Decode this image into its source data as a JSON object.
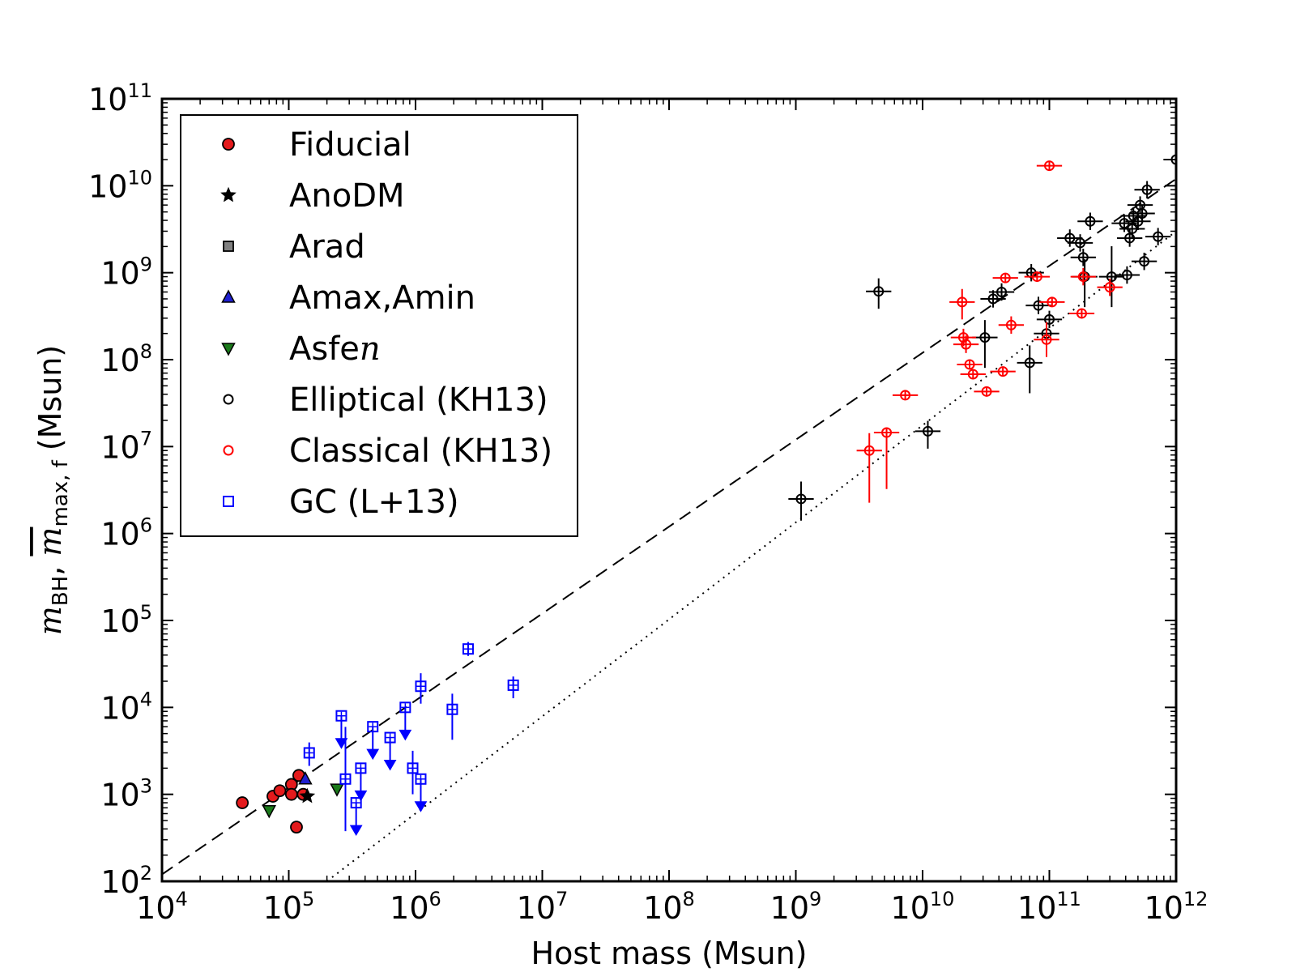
{
  "chart_data": {
    "type": "scatter",
    "xlabel": "Host mass (Msun)",
    "ylabel": {
      "prefix": "m",
      "sub1": "BH",
      "sep": ", ",
      "sym2": "m",
      "sub2": "max, f",
      "unit": "(Msun)"
    },
    "xscale": "log",
    "yscale": "log",
    "xlim": [
      10000.0,
      1000000000000.0
    ],
    "ylim": [
      100,
      100000000000.0
    ],
    "x_ticks": [
      {
        "base": "10",
        "exp": "4",
        "value": 10000.0
      },
      {
        "base": "10",
        "exp": "5",
        "value": 100000.0
      },
      {
        "base": "10",
        "exp": "6",
        "value": 1000000.0
      },
      {
        "base": "10",
        "exp": "7",
        "value": 10000000.0
      },
      {
        "base": "10",
        "exp": "8",
        "value": 100000000.0
      },
      {
        "base": "10",
        "exp": "9",
        "value": 1000000000.0
      },
      {
        "base": "10",
        "exp": "10",
        "value": 10000000000.0
      },
      {
        "base": "10",
        "exp": "11",
        "value": 100000000000.0
      },
      {
        "base": "10",
        "exp": "12",
        "value": 1000000000000.0
      }
    ],
    "y_ticks": [
      {
        "base": "10",
        "exp": "2",
        "value": 100.0
      },
      {
        "base": "10",
        "exp": "3",
        "value": 1000.0
      },
      {
        "base": "10",
        "exp": "4",
        "value": 10000.0
      },
      {
        "base": "10",
        "exp": "5",
        "value": 100000.0
      },
      {
        "base": "10",
        "exp": "6",
        "value": 1000000.0
      },
      {
        "base": "10",
        "exp": "7",
        "value": 10000000.0
      },
      {
        "base": "10",
        "exp": "8",
        "value": 100000000.0
      },
      {
        "base": "10",
        "exp": "9",
        "value": 1000000000.0
      },
      {
        "base": "10",
        "exp": "10",
        "value": 10000000000.0
      },
      {
        "base": "10",
        "exp": "11",
        "value": 100000000000.0
      }
    ],
    "legend": {
      "placement": "top-left",
      "entries": [
        {
          "label": "Fiducial",
          "marker": "circle",
          "fill": "#e41a1c",
          "stroke": "#000000"
        },
        {
          "label": "AnoDM",
          "marker": "star",
          "fill": "#000000",
          "stroke": "#000000"
        },
        {
          "label": "Arad",
          "marker": "square",
          "fill": "#808080",
          "stroke": "#000000"
        },
        {
          "label": "Amax,Amin",
          "marker": "triangle-up",
          "fill": "#1f1fd0",
          "stroke": "#000000"
        },
        {
          "label": "Asfe",
          "label_math": "n",
          "marker": "triangle-down",
          "fill": "#1a7a1a",
          "stroke": "#000000"
        },
        {
          "label": "Elliptical (KH13)",
          "marker": "open-circle",
          "fill": "none",
          "stroke": "#000000"
        },
        {
          "label": "Classical (KH13)",
          "marker": "open-circle",
          "fill": "none",
          "stroke": "#ff0000"
        },
        {
          "label": "GC (L+13)",
          "marker": "open-square",
          "fill": "none",
          "stroke": "#0000ff"
        }
      ]
    },
    "lines": [
      {
        "style": "dashed",
        "x": [
          10000.0,
          1000000000000.0
        ],
        "y": [
          120,
          12000000000.0
        ]
      },
      {
        "style": "dotted",
        "x": [
          200000.0,
          1000000000000.0
        ],
        "y": [
          100,
          3000000000.0
        ]
      }
    ],
    "series": [
      {
        "name": "Fiducial",
        "marker": "circle",
        "points": [
          {
            "x": 43000.0,
            "y": 800
          },
          {
            "x": 75000.0,
            "y": 950
          },
          {
            "x": 85000.0,
            "y": 1100
          },
          {
            "x": 105000.0,
            "y": 1300
          },
          {
            "x": 105000.0,
            "y": 1000
          },
          {
            "x": 120000.0,
            "y": 1650
          },
          {
            "x": 130000.0,
            "y": 1000
          },
          {
            "x": 115000.0,
            "y": 420
          }
        ]
      },
      {
        "name": "AnoDM",
        "marker": "star",
        "points": [
          {
            "x": 140000.0,
            "y": 950
          }
        ]
      },
      {
        "name": "Amax,Amin",
        "marker": "triangle-up",
        "points": [
          {
            "x": 135000.0,
            "y": 1500
          }
        ]
      },
      {
        "name": "Asfe",
        "marker": "triangle-down",
        "points": [
          {
            "x": 70000.0,
            "y": 650
          },
          {
            "x": 240000.0,
            "y": 1150
          }
        ]
      },
      {
        "name": "Elliptical (KH13)",
        "marker": "open-circle",
        "points": [
          {
            "x": 1100000000.0,
            "y": 2500000.0,
            "xerr": [
              0.1,
              0.1
            ],
            "yerr": [
              0.25,
              0.2
            ]
          },
          {
            "x": 4500000000.0,
            "y": 610000000.0,
            "xerr": [
              0.1,
              0.1
            ],
            "yerr": [
              0.2,
              0.15
            ]
          },
          {
            "x": 11000000000.0,
            "y": 15000000.0,
            "xerr": [
              0.1,
              0.1
            ],
            "yerr": [
              0.2,
              0.12
            ]
          },
          {
            "x": 31000000000.0,
            "y": 180000000.0,
            "xerr": [
              0.1,
              0.1
            ],
            "yerr": [
              0.35,
              0.2
            ]
          },
          {
            "x": 36000000000.0,
            "y": 500000000.0,
            "xerr": [
              0.1,
              0.1
            ],
            "yerr": [
              0.1,
              0.1
            ]
          },
          {
            "x": 42000000000.0,
            "y": 600000000.0,
            "xerr": [
              0.1,
              0.1
            ],
            "yerr": [
              0.1,
              0.1
            ]
          },
          {
            "x": 70000000000.0,
            "y": 92000000.0,
            "xerr": [
              0.1,
              0.1
            ],
            "yerr": [
              0.35,
              0.2
            ]
          },
          {
            "x": 72000000000.0,
            "y": 1000000000.0,
            "xerr": [
              0.1,
              0.1
            ],
            "yerr": [
              0.1,
              0.1
            ]
          },
          {
            "x": 82000000000.0,
            "y": 420000000.0,
            "xerr": [
              0.1,
              0.1
            ],
            "yerr": [
              0.1,
              0.1
            ]
          },
          {
            "x": 95000000000.0,
            "y": 200000000.0,
            "xerr": [
              0.1,
              0.1
            ],
            "yerr": [
              0.1,
              0.1
            ]
          },
          {
            "x": 100000000000.0,
            "y": 290000000.0,
            "xerr": [
              0.1,
              0.1
            ],
            "yerr": [
              0.1,
              0.1
            ]
          },
          {
            "x": 145000000000.0,
            "y": 2500000000.0,
            "xerr": [
              0.1,
              0.1
            ],
            "yerr": [
              0.1,
              0.1
            ]
          },
          {
            "x": 175000000000.0,
            "y": 2200000000.0,
            "xerr": [
              0.1,
              0.1
            ],
            "yerr": [
              0.1,
              0.1
            ]
          },
          {
            "x": 185000000000.0,
            "y": 1500000000.0,
            "xerr": [
              0.1,
              0.1
            ],
            "yerr": [
              0.1,
              0.1
            ]
          },
          {
            "x": 190000000000.0,
            "y": 900000000.0,
            "xerr": [
              0.1,
              0.1
            ],
            "yerr": [
              0.35,
              0.2
            ]
          },
          {
            "x": 210000000000.0,
            "y": 3900000000.0,
            "xerr": [
              0.1,
              0.1
            ],
            "yerr": [
              0.1,
              0.1
            ]
          },
          {
            "x": 310000000000.0,
            "y": 900000000.0,
            "xerr": [
              0.1,
              0.1
            ],
            "yerr": [
              0.35,
              0.35
            ]
          },
          {
            "x": 390000000000.0,
            "y": 3700000000.0,
            "xerr": [
              0.1,
              0.1
            ],
            "yerr": [
              0.1,
              0.1
            ]
          },
          {
            "x": 410000000000.0,
            "y": 940000000.0,
            "xerr": [
              0.1,
              0.1
            ],
            "yerr": [
              0.1,
              0.1
            ]
          },
          {
            "x": 430000000000.0,
            "y": 2500000000.0,
            "xerr": [
              0.1,
              0.1
            ],
            "yerr": [
              0.1,
              0.1
            ]
          },
          {
            "x": 450000000000.0,
            "y": 3200000000.0,
            "xerr": [
              0.1,
              0.1
            ],
            "yerr": [
              0.1,
              0.1
            ]
          },
          {
            "x": 460000000000.0,
            "y": 4500000000.0,
            "xerr": [
              0.1,
              0.1
            ],
            "yerr": [
              0.1,
              0.1
            ]
          },
          {
            "x": 500000000000.0,
            "y": 3900000000.0,
            "xerr": [
              0.1,
              0.1
            ],
            "yerr": [
              0.1,
              0.1
            ]
          },
          {
            "x": 520000000000.0,
            "y": 6000000000.0,
            "xerr": [
              0.1,
              0.1
            ],
            "yerr": [
              0.1,
              0.1
            ]
          },
          {
            "x": 540000000000.0,
            "y": 4800000000.0,
            "xerr": [
              0.1,
              0.1
            ],
            "yerr": [
              0.1,
              0.1
            ]
          },
          {
            "x": 560000000000.0,
            "y": 1350000000.0,
            "xerr": [
              0.1,
              0.1
            ],
            "yerr": [
              0.1,
              0.1
            ]
          },
          {
            "x": 590000000000.0,
            "y": 9000000000.0,
            "xerr": [
              0.1,
              0.1
            ],
            "yerr": [
              0.1,
              0.1
            ]
          },
          {
            "x": 720000000000.0,
            "y": 2600000000.0,
            "xerr": [
              0.1,
              0.1
            ],
            "yerr": [
              0.1,
              0.1
            ]
          },
          {
            "x": 1000000000000.0,
            "y": 20000000000.0,
            "xerr": [
              0.1,
              0.1
            ],
            "yerr": [
              0.15,
              0.15
            ]
          }
        ]
      },
      {
        "name": "Classical (KH13)",
        "marker": "open-circle",
        "points": [
          {
            "x": 3800000000.0,
            "y": 9000000.0,
            "xerr": [
              0.1,
              0.1
            ],
            "yerr": [
              0.6,
              0.2
            ]
          },
          {
            "x": 5200000000.0,
            "y": 14500000.0,
            "xerr": [
              0.1,
              0.1
            ],
            "yerr": [
              0.65,
              0.05
            ]
          },
          {
            "x": 7300000000.0,
            "y": 39000000.0,
            "xerr": [
              0.1,
              0.1
            ],
            "yerr": [
              0.05,
              0.05
            ]
          },
          {
            "x": 20500000000.0,
            "y": 460000000.0,
            "xerr": [
              0.1,
              0.1
            ],
            "yerr": [
              0.2,
              0.15
            ]
          },
          {
            "x": 21000000000.0,
            "y": 180000000.0,
            "xerr": [
              0.1,
              0.1
            ],
            "yerr": [
              0.1,
              0.1
            ]
          },
          {
            "x": 22000000000.0,
            "y": 150000000.0,
            "xerr": [
              0.1,
              0.1
            ],
            "yerr": [
              0.1,
              0.1
            ]
          },
          {
            "x": 23500000000.0,
            "y": 88000000.0,
            "xerr": [
              0.1,
              0.1
            ],
            "yerr": [
              0.05,
              0.05
            ]
          },
          {
            "x": 25000000000.0,
            "y": 68000000.0,
            "xerr": [
              0.1,
              0.1
            ],
            "yerr": [
              0.05,
              0.05
            ]
          },
          {
            "x": 32000000000.0,
            "y": 43000000.0,
            "xerr": [
              0.1,
              0.1
            ],
            "yerr": [
              0.05,
              0.05
            ]
          },
          {
            "x": 43000000000.0,
            "y": 73000000.0,
            "xerr": [
              0.1,
              0.1
            ],
            "yerr": [
              0.05,
              0.05
            ]
          },
          {
            "x": 45000000000.0,
            "y": 870000000.0,
            "xerr": [
              0.1,
              0.1
            ],
            "yerr": [
              0.05,
              0.05
            ]
          },
          {
            "x": 50000000000.0,
            "y": 250000000.0,
            "xerr": [
              0.1,
              0.1
            ],
            "yerr": [
              0.1,
              0.1
            ]
          },
          {
            "x": 80000000000.0,
            "y": 900000000.0,
            "xerr": [
              0.1,
              0.1
            ],
            "yerr": [
              0.05,
              0.05
            ]
          },
          {
            "x": 95000000000.0,
            "y": 170000000.0,
            "xerr": [
              0.1,
              0.1
            ],
            "yerr": [
              0.2,
              0.2
            ]
          },
          {
            "x": 100000000000.0,
            "y": 17000000000.0,
            "xerr": [
              0.1,
              0.1
            ],
            "yerr": [
              0.05,
              0.05
            ]
          },
          {
            "x": 105000000000.0,
            "y": 460000000.0,
            "xerr": [
              0.1,
              0.1
            ],
            "yerr": [
              0.05,
              0.05
            ]
          },
          {
            "x": 180000000000.0,
            "y": 340000000.0,
            "xerr": [
              0.1,
              0.1
            ],
            "yerr": [
              0.05,
              0.05
            ]
          },
          {
            "x": 185000000000.0,
            "y": 900000000.0,
            "xerr": [
              0.1,
              0.1
            ],
            "yerr": [
              0.1,
              0.1
            ]
          },
          {
            "x": 300000000000.0,
            "y": 680000000.0,
            "xerr": [
              0.1,
              0.1
            ],
            "yerr": [
              0.1,
              0.1
            ]
          }
        ]
      },
      {
        "name": "GC (L+13)",
        "marker": "open-square",
        "points": [
          {
            "x": 145000.0,
            "y": 3000,
            "yerr": [
              0.15,
              0.12
            ]
          },
          {
            "x": 260000.0,
            "y": 8000,
            "upper_limit": true
          },
          {
            "x": 280000.0,
            "y": 1500,
            "yerr": [
              0.6,
              0.6
            ]
          },
          {
            "x": 340000.0,
            "y": 800,
            "upper_limit": true
          },
          {
            "x": 370000.0,
            "y": 2000,
            "upper_limit": true
          },
          {
            "x": 460000.0,
            "y": 6000,
            "upper_limit": true
          },
          {
            "x": 630000.0,
            "y": 4500,
            "upper_limit": true
          },
          {
            "x": 830000.0,
            "y": 10000,
            "upper_limit": true
          },
          {
            "x": 950000.0,
            "y": 2000,
            "yerr": [
              0.3,
              0.2
            ]
          },
          {
            "x": 1100000.0,
            "y": 1500,
            "upper_limit": true
          },
          {
            "x": 1100000.0,
            "y": 17500,
            "yerr": [
              0.2,
              0.15
            ]
          },
          {
            "x": 1950000.0,
            "y": 9500,
            "yerr": [
              0.35,
              0.18
            ]
          },
          {
            "x": 2600000.0,
            "y": 47000,
            "yerr": [
              0.08,
              0.08
            ]
          },
          {
            "x": 5900000.0,
            "y": 18000,
            "yerr": [
              0.15,
              0.1
            ]
          }
        ]
      }
    ]
  }
}
